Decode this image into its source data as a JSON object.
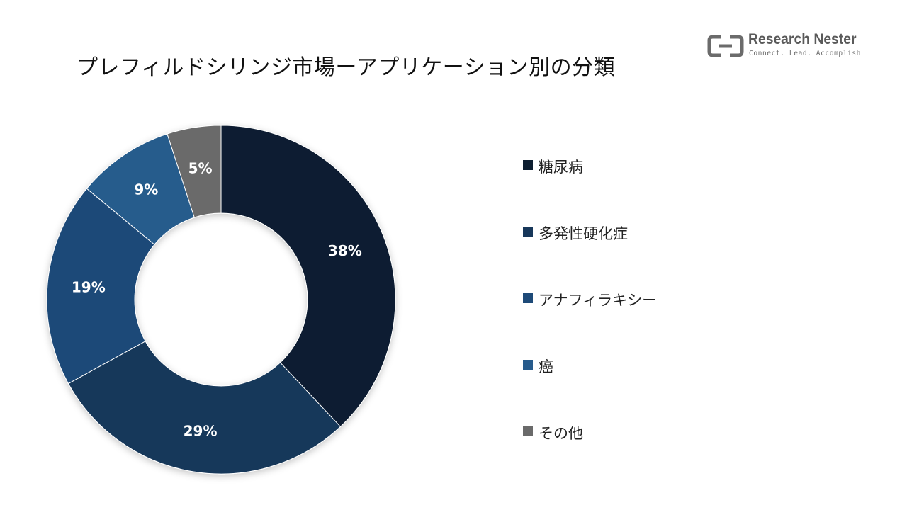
{
  "page": {
    "title": "プレフィルドシリンジ市場ーアプリケーション別の分類"
  },
  "logo": {
    "name": "Research Nester",
    "tagline": "Connect. Lead. Accomplish",
    "color": "#6b6b6b"
  },
  "chart_data": {
    "type": "pie",
    "subtype": "donut",
    "title": "プレフィルドシリンジ市場ーアプリケーション別の分類",
    "unit": "%",
    "legend_position": "right",
    "slices": [
      {
        "label": "糖尿病",
        "value": 38,
        "display": "38%",
        "color": "#0d1e30"
      },
      {
        "label": "多発性硬化症",
        "value": 29,
        "display": "29%",
        "color": "#17375a"
      },
      {
        "label": "アナフィラキシー",
        "value": 19,
        "display": "19%",
        "color": "#1e4a78"
      },
      {
        "label": "癌",
        "value": 9,
        "display": "9%",
        "color": "#275b8c"
      },
      {
        "label": "その他",
        "value": 5,
        "display": "5%",
        "color": "#6a6a6a"
      }
    ]
  }
}
